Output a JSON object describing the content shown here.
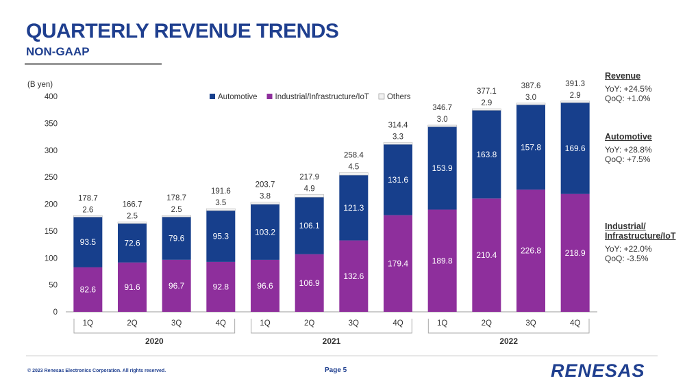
{
  "header": {
    "title": "QUARTERLY REVENUE TRENDS",
    "subtitle": "NON-GAAP"
  },
  "chart_data": {
    "type": "bar",
    "stacked": true,
    "unit_label": "(B yen)",
    "categories": [
      "1Q",
      "2Q",
      "3Q",
      "4Q",
      "1Q",
      "2Q",
      "3Q",
      "4Q",
      "1Q",
      "2Q",
      "3Q",
      "4Q"
    ],
    "years": [
      {
        "label": "2020",
        "start": 0,
        "end": 3
      },
      {
        "label": "2021",
        "start": 4,
        "end": 7
      },
      {
        "label": "2022",
        "start": 8,
        "end": 11
      }
    ],
    "series": [
      {
        "name": "Industrial/Infrastructure/IoT",
        "color": "#8e2f9c",
        "values": [
          82.6,
          91.6,
          96.7,
          92.8,
          96.6,
          106.9,
          132.6,
          179.4,
          189.8,
          210.4,
          226.8,
          218.9
        ]
      },
      {
        "name": "Automotive",
        "color": "#173f8c",
        "values": [
          93.5,
          72.6,
          79.6,
          95.3,
          103.2,
          106.1,
          121.3,
          131.6,
          153.9,
          163.8,
          157.8,
          169.6
        ]
      },
      {
        "name": "Others",
        "color": "#f2f2f2",
        "values": [
          2.6,
          2.5,
          2.5,
          3.5,
          3.8,
          4.9,
          4.5,
          3.3,
          3.0,
          2.9,
          3.0,
          2.9
        ]
      }
    ],
    "totals": [
      178.7,
      166.7,
      178.7,
      191.6,
      203.7,
      217.9,
      258.4,
      314.4,
      346.7,
      377.1,
      387.6,
      391.3
    ],
    "ylim": [
      0,
      400
    ],
    "yticks": [
      0,
      50,
      100,
      150,
      200,
      250,
      300,
      350,
      400
    ],
    "legend_position": "top-center",
    "grid": false
  },
  "side_notes": [
    {
      "head": "Revenue",
      "yoy": "YoY: +24.5%",
      "qoq": "QoQ: +1.0%"
    },
    {
      "head": "Automotive",
      "yoy": "YoY: +28.8%",
      "qoq": "QoQ: +7.5%"
    },
    {
      "head": "Industrial/\nInfrastructure/IoT",
      "yoy": "YoY: +22.0%",
      "qoq": "QoQ: -3.5%"
    }
  ],
  "footer": {
    "copyright": "© 2023 Renesas Electronics Corporation. All rights reserved.",
    "page": "Page 5",
    "logo": "RENESAS"
  },
  "colors": {
    "brand": "#1f3f8f",
    "automotive": "#173f8c",
    "industrial": "#8e2f9c",
    "others": "#f2f2f2"
  }
}
